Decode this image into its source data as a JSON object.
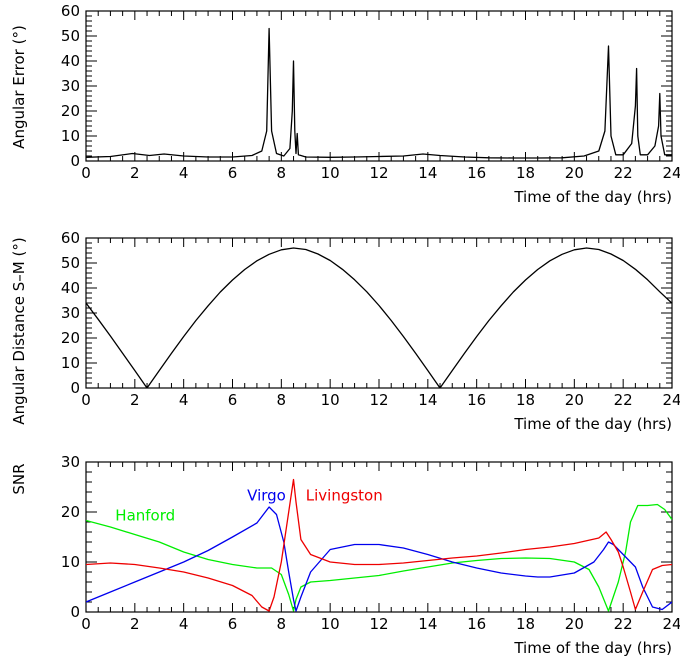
{
  "chart_data": [
    {
      "type": "line",
      "xlabel": "Time of the day (hrs)",
      "ylabel": "Angular Error (°)",
      "xlim": [
        0,
        24
      ],
      "ylim": [
        0,
        60
      ],
      "x_ticks": [
        0,
        2,
        4,
        6,
        8,
        10,
        12,
        14,
        16,
        18,
        20,
        22,
        24
      ],
      "y_ticks": [
        0,
        10,
        20,
        30,
        40,
        50,
        60
      ],
      "grid": false,
      "series": [
        {
          "color": "#000000",
          "x": [
            0,
            1.0,
            1.9,
            2.6,
            3.2,
            4.0,
            5.0,
            6.0,
            6.8,
            7.2,
            7.4,
            7.5,
            7.6,
            7.8,
            8.1,
            8.35,
            8.45,
            8.5,
            8.55,
            8.6,
            8.65,
            8.7,
            9.0,
            10.0,
            11.0,
            12.0,
            13.0,
            13.8,
            14.5,
            15.5,
            16.5,
            17.5,
            18.5,
            19.5,
            20.4,
            21.0,
            21.25,
            21.4,
            21.5,
            21.7,
            22.0,
            22.35,
            22.5,
            22.55,
            22.6,
            22.7,
            23.0,
            23.3,
            23.45,
            23.5,
            23.55,
            23.7,
            24.0
          ],
          "y": [
            1.5,
            1.8,
            3.0,
            2.2,
            2.8,
            2.0,
            1.6,
            1.6,
            2.2,
            4.0,
            12.0,
            53.0,
            12.0,
            3.0,
            2.0,
            5.0,
            20.0,
            40.0,
            12.0,
            3.0,
            11.0,
            2.5,
            1.6,
            1.5,
            1.6,
            1.8,
            2.0,
            2.8,
            2.2,
            1.6,
            1.3,
            1.2,
            1.2,
            1.3,
            2.0,
            4.0,
            12.0,
            46.0,
            10.0,
            2.5,
            2.5,
            7.0,
            22.0,
            37.0,
            10.0,
            2.5,
            2.5,
            6.0,
            14.0,
            27.0,
            10.0,
            2.5,
            2.5
          ]
        }
      ]
    },
    {
      "type": "line",
      "xlabel": "Time of the day (hrs)",
      "ylabel": "Angular Distance S–M (°)",
      "xlim": [
        0,
        24
      ],
      "ylim": [
        0,
        60
      ],
      "x_ticks": [
        0,
        2,
        4,
        6,
        8,
        10,
        12,
        14,
        16,
        18,
        20,
        22,
        24
      ],
      "y_ticks": [
        0,
        10,
        20,
        30,
        40,
        50,
        60
      ],
      "grid": false,
      "series": [
        {
          "color": "#000000",
          "x": [
            0,
            0.5,
            1.0,
            1.5,
            2.0,
            2.5,
            3.0,
            3.5,
            4.0,
            4.5,
            5.0,
            5.5,
            6.0,
            6.5,
            7.0,
            7.5,
            8.0,
            8.5,
            9.0,
            9.5,
            10.0,
            10.5,
            11.0,
            11.5,
            12.0,
            12.5,
            13.0,
            13.5,
            14.0,
            14.5,
            15.0,
            15.5,
            16.0,
            16.5,
            17.0,
            17.5,
            18.0,
            18.5,
            19.0,
            19.5,
            20.0,
            20.5,
            21.0,
            21.5,
            22.0,
            22.5,
            23.0,
            23.5,
            24.0
          ],
          "y": [
            34.0,
            27.5,
            20.8,
            13.9,
            7.0,
            0.0,
            7.0,
            13.9,
            20.6,
            27.0,
            32.9,
            38.4,
            43.2,
            47.4,
            50.9,
            53.5,
            55.3,
            56.0,
            55.4,
            53.6,
            51.0,
            47.5,
            43.3,
            38.5,
            33.0,
            27.0,
            20.6,
            13.9,
            7.0,
            0.0,
            7.0,
            13.9,
            20.6,
            27.0,
            32.9,
            38.4,
            43.2,
            47.4,
            50.9,
            53.5,
            55.3,
            56.0,
            55.4,
            53.6,
            51.0,
            47.5,
            43.3,
            38.5,
            33.9
          ]
        }
      ]
    },
    {
      "type": "line",
      "xlabel": "Time of the day (hrs)",
      "ylabel": "SNR",
      "xlim": [
        0,
        24
      ],
      "ylim": [
        0,
        30
      ],
      "x_ticks": [
        0,
        2,
        4,
        6,
        8,
        10,
        12,
        14,
        16,
        18,
        20,
        22,
        24
      ],
      "y_ticks": [
        0,
        10,
        20,
        30
      ],
      "grid": false,
      "series": [
        {
          "name": "Hanford",
          "color": "#00ee00",
          "x": [
            0,
            1,
            2,
            3,
            4,
            5,
            6,
            7,
            7.6,
            8.0,
            8.3,
            8.5,
            8.6,
            8.8,
            9.2,
            10,
            11,
            12,
            13,
            14,
            15,
            16,
            17,
            18,
            19,
            20,
            20.6,
            21.0,
            21.4,
            21.8,
            22.1,
            22.3,
            22.6,
            23.0,
            23.4,
            23.7,
            24.0
          ],
          "y": [
            18.3,
            17.0,
            15.5,
            14.0,
            12.0,
            10.5,
            9.5,
            8.8,
            8.8,
            7.5,
            3.5,
            0.2,
            2.5,
            5.0,
            6.0,
            6.3,
            6.8,
            7.3,
            8.2,
            9.0,
            9.8,
            10.3,
            10.7,
            10.8,
            10.7,
            10.0,
            8.5,
            5.0,
            0.2,
            6.0,
            12.0,
            18.0,
            21.3,
            21.3,
            21.5,
            20.5,
            18.5
          ]
        },
        {
          "name": "Virgo",
          "color": "#0000ee",
          "x": [
            0,
            1,
            2,
            3,
            4,
            5,
            6,
            7,
            7.5,
            7.8,
            8.1,
            8.3,
            8.5,
            8.6,
            8.8,
            9.2,
            10,
            11,
            12,
            13,
            14,
            15,
            16,
            17,
            18,
            18.5,
            19,
            20,
            20.8,
            21.2,
            21.4,
            21.6,
            22.0,
            22.5,
            22.8,
            23.2,
            23.6,
            24.0
          ],
          "y": [
            2.0,
            4.0,
            6.0,
            8.0,
            10.0,
            12.3,
            15.0,
            17.8,
            21.0,
            19.5,
            14.0,
            8.0,
            2.5,
            0.2,
            3.0,
            8.0,
            12.5,
            13.5,
            13.5,
            12.8,
            11.5,
            10.0,
            8.8,
            7.8,
            7.2,
            7.0,
            7.0,
            7.8,
            10.0,
            12.5,
            14.0,
            13.5,
            11.5,
            9.0,
            5.0,
            1.0,
            0.5,
            2.0
          ]
        },
        {
          "name": "Livingston",
          "color": "#ee0000",
          "x": [
            0,
            1,
            2,
            3,
            4,
            5,
            6,
            6.8,
            7.2,
            7.5,
            7.7,
            8.0,
            8.3,
            8.5,
            8.6,
            8.8,
            9.2,
            10,
            11,
            12,
            13,
            14,
            15,
            16,
            17,
            18,
            19,
            20,
            21.0,
            21.3,
            21.5,
            21.8,
            22.0,
            22.3,
            22.5,
            22.8,
            23.2,
            23.6,
            24.0
          ],
          "y": [
            9.5,
            9.8,
            9.5,
            8.8,
            8.0,
            6.8,
            5.3,
            3.3,
            1.0,
            0.2,
            3.0,
            10.0,
            20.0,
            26.5,
            22.0,
            14.5,
            11.5,
            10.0,
            9.5,
            9.5,
            9.8,
            10.3,
            10.8,
            11.2,
            11.8,
            12.5,
            13.0,
            13.7,
            14.8,
            16.0,
            14.5,
            12.0,
            9.0,
            4.0,
            0.5,
            4.0,
            8.5,
            9.3,
            9.5
          ]
        }
      ],
      "annotations": [
        {
          "text": "Hanford",
          "color": "#00ee00",
          "x": 1.2,
          "y": 18.3
        },
        {
          "text": "Virgo",
          "color": "#0000ee",
          "x": 6.6,
          "y": 22.3
        },
        {
          "text": "Livingston",
          "color": "#ee0000",
          "x": 9.0,
          "y": 22.3
        }
      ]
    }
  ]
}
